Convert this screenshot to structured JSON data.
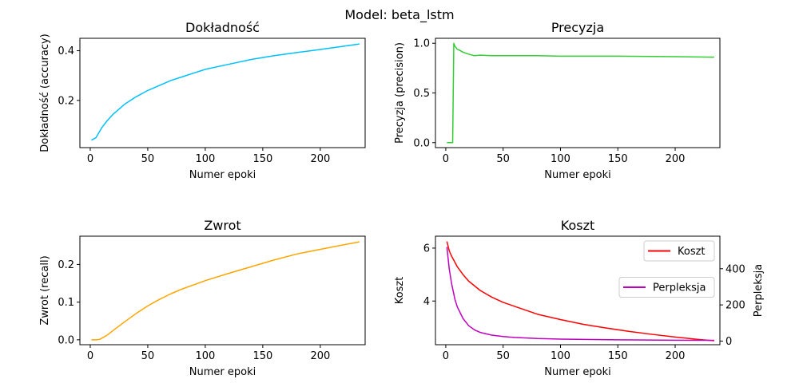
{
  "suptitle": "Model: beta_lstm",
  "chart_data": [
    {
      "type": "line",
      "title": "Dokładność",
      "xlabel": "Numer epoki",
      "ylabel": "Dokładność (accuracy)",
      "xlim": [
        -9,
        239
      ],
      "ylim": [
        0.01,
        0.45
      ],
      "xticks": [
        0,
        50,
        100,
        150,
        200
      ],
      "yticks": [
        0.2,
        0.4
      ],
      "ytick_labels": [
        "0.2",
        "0.4"
      ],
      "grid": false,
      "series": [
        {
          "color": "#00bfff",
          "x": [
            1,
            5,
            10,
            15,
            20,
            30,
            40,
            50,
            60,
            70,
            80,
            90,
            100,
            120,
            140,
            160,
            180,
            200,
            220,
            234
          ],
          "y": [
            0.04,
            0.05,
            0.09,
            0.12,
            0.145,
            0.185,
            0.215,
            0.24,
            0.26,
            0.28,
            0.295,
            0.31,
            0.325,
            0.345,
            0.365,
            0.38,
            0.393,
            0.405,
            0.418,
            0.427
          ]
        }
      ]
    },
    {
      "type": "line",
      "title": "Precyzja",
      "xlabel": "Numer epoki",
      "ylabel": "Precyzja (precision)",
      "xlim": [
        -9,
        239
      ],
      "ylim": [
        -0.05,
        1.05
      ],
      "xticks": [
        0,
        50,
        100,
        150,
        200
      ],
      "yticks": [
        0.0,
        0.5,
        1.0
      ],
      "ytick_labels": [
        "0.0",
        "0.5",
        "1.0"
      ],
      "grid": false,
      "series": [
        {
          "color": "#32cd32",
          "x": [
            1,
            6,
            7,
            8,
            10,
            12,
            15,
            20,
            25,
            30,
            40,
            60,
            80,
            100,
            150,
            200,
            234
          ],
          "y": [
            0.0,
            0.0,
            1.0,
            0.97,
            0.94,
            0.93,
            0.91,
            0.89,
            0.875,
            0.88,
            0.875,
            0.875,
            0.875,
            0.87,
            0.87,
            0.865,
            0.86
          ]
        }
      ]
    },
    {
      "type": "line",
      "title": "Zwrot",
      "xlabel": "Numer epoki",
      "ylabel": "Zwrot (recall)",
      "xlim": [
        -9,
        239
      ],
      "ylim": [
        -0.013,
        0.275
      ],
      "xticks": [
        0,
        50,
        100,
        150,
        200
      ],
      "yticks": [
        0.0,
        0.1,
        0.2
      ],
      "ytick_labels": [
        "0.0",
        "0.1",
        "0.2"
      ],
      "grid": false,
      "series": [
        {
          "color": "#ffa500",
          "x": [
            1,
            5,
            8,
            10,
            15,
            20,
            30,
            40,
            50,
            60,
            70,
            80,
            90,
            100,
            120,
            140,
            160,
            180,
            200,
            220,
            234
          ],
          "y": [
            0.0,
            0.0,
            0.001,
            0.004,
            0.013,
            0.025,
            0.048,
            0.07,
            0.09,
            0.107,
            0.122,
            0.135,
            0.146,
            0.157,
            0.176,
            0.194,
            0.212,
            0.228,
            0.24,
            0.252,
            0.26
          ]
        }
      ]
    },
    {
      "type": "line",
      "title": "Koszt",
      "xlabel": "Numer epoki",
      "ylabel": "Koszt",
      "ylabel_right": "Perpleksja",
      "xlim": [
        -9,
        239
      ],
      "ylim": [
        2.35,
        6.45
      ],
      "ylim_right": [
        -20,
        580
      ],
      "xticks": [
        0,
        50,
        100,
        150,
        200
      ],
      "yticks": [
        4,
        6
      ],
      "ytick_labels": [
        "4",
        "6"
      ],
      "yticks_right": [
        0,
        200,
        400
      ],
      "ytick_labels_right": [
        "0",
        "200",
        "400"
      ],
      "grid": false,
      "series": [
        {
          "name": "Koszt",
          "axis": "left",
          "color": "#ff0000",
          "x": [
            1,
            3,
            5,
            10,
            15,
            20,
            30,
            40,
            50,
            60,
            80,
            100,
            120,
            140,
            160,
            180,
            200,
            220,
            234
          ],
          "y": [
            6.25,
            5.9,
            5.7,
            5.3,
            5.0,
            4.75,
            4.4,
            4.15,
            3.95,
            3.8,
            3.5,
            3.3,
            3.12,
            2.98,
            2.85,
            2.74,
            2.64,
            2.55,
            2.5
          ]
        },
        {
          "name": "Perpleksja",
          "axis": "right",
          "color": "#bf00bf",
          "x": [
            1,
            3,
            5,
            8,
            10,
            15,
            20,
            25,
            30,
            40,
            50,
            60,
            80,
            100,
            150,
            200,
            234
          ],
          "y": [
            520,
            400,
            320,
            230,
            190,
            125,
            85,
            62,
            48,
            33,
            25,
            20,
            14,
            11,
            7,
            5,
            4
          ]
        }
      ],
      "legends": [
        {
          "series": 0,
          "placement": "upper right"
        },
        {
          "series": 1,
          "placement": "center right"
        }
      ]
    }
  ]
}
